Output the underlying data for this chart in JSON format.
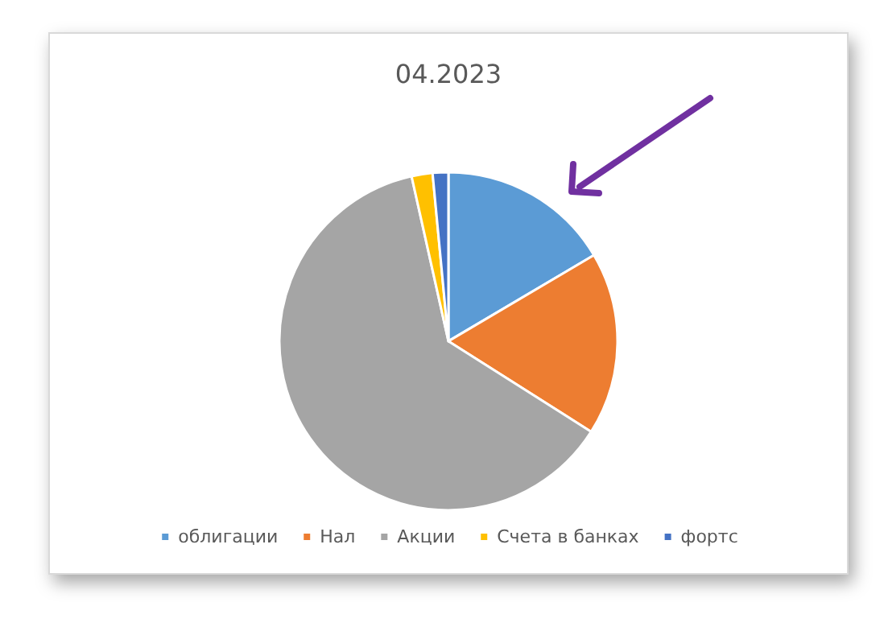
{
  "chart_data": {
    "type": "pie",
    "title": "04.2023",
    "categories": [
      "облигации",
      "Нал",
      "Акции",
      "Счета в банках",
      "фортс"
    ],
    "values": [
      16.5,
      17.5,
      62.5,
      2,
      1.5
    ],
    "colors": [
      "#5b9bd5",
      "#ed7d31",
      "#a5a5a5",
      "#ffc000",
      "#4472c4"
    ],
    "legend": "bottom"
  }
}
